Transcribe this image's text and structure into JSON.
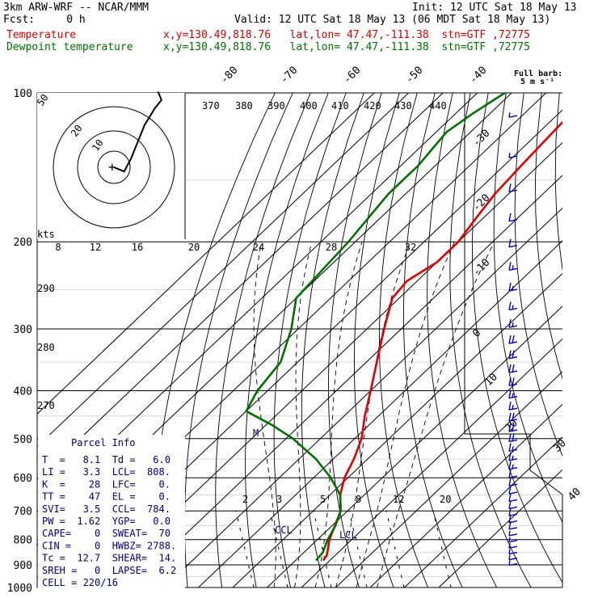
{
  "header": {
    "model": "3km ARW-WRF -- NCAR/MMM",
    "init": "Init: 12 UTC Sat 18 May 13",
    "fcst": "Fcst:     0 h",
    "valid": "Valid: 12 UTC Sat 18 May 13 (06 MDT Sat 18 May 13)",
    "temp_label": "Temperature",
    "temp_loc": "x,y=130.49,818.76   lat,lon= 47.47,-111.38  stn=GTF ,72775",
    "dew_label": "Dewpoint temperature",
    "dew_loc": "x,y=130.49,818.76   lat,lon= 47.47,-111.38  stn=GTF ,72775"
  },
  "barb_legend": {
    "title": "Full barb:",
    "value": "5 m s⁻¹"
  },
  "colors": {
    "temperature": "#e00000",
    "dewpoint": "#007000",
    "wind": "#0000c0",
    "parcel": "#000080"
  },
  "axes": {
    "pressure_labels": [
      "100",
      "200",
      "300",
      "400",
      "500",
      "600",
      "700",
      "800",
      "900",
      "1000"
    ],
    "pressure_values": [
      100,
      200,
      300,
      400,
      500,
      600,
      700,
      800,
      900,
      1000
    ],
    "skew_temps": [
      "-80",
      "-70",
      "-60",
      "-50",
      "-40",
      "-30",
      "-20",
      "-10",
      "0",
      "10",
      "20",
      "30",
      "40"
    ],
    "theta_labels": [
      "370",
      "380",
      "390",
      "400",
      "410",
      "420",
      "430",
      "440",
      "290",
      "280",
      "270"
    ],
    "hodo_speed_labels": [
      "8",
      "12",
      "16",
      "20",
      "24",
      "28",
      "32"
    ],
    "hodo_units": "kts",
    "hodo_ring_labels": [
      "50",
      "20",
      "10"
    ],
    "mixing_ratio_labels": [
      "2",
      "3",
      "5",
      "8",
      "12",
      "20"
    ]
  },
  "annotations": {
    "ccl": "CCL",
    "lcl": "LCL",
    "m": "M"
  },
  "parcel_info": {
    "title": "Parcel Info",
    "rows": [
      "T  =   8.1  Td =   6.0",
      "LI =   3.3  LCL=  808.",
      "K  =    28  LFC=    0.",
      "TT =    47  EL =    0.",
      "SVI=   3.5  CCL=  784.",
      "PW =  1.62  YGP=   0.0",
      "CAPE=    0  SWEAT=  70",
      "CIN =    0  HWBZ= 2788.",
      "Tc =  12.7  SHEAR=  14.",
      "SREH =   0  LAPSE=  6.2",
      "CELL = 220/16"
    ]
  },
  "chart_data": {
    "type": "line",
    "title": "",
    "ylabel": "",
    "ylim": [
      1000,
      100
    ],
    "y_scale": "log-pressure",
    "series": [
      {
        "name": "Temperature",
        "points": [
          [
            882,
            8.1
          ],
          [
            860,
            7.5
          ],
          [
            800,
            3.5
          ],
          [
            700,
            -2
          ],
          [
            650,
            -7
          ],
          [
            600,
            -11
          ],
          [
            550,
            -14
          ],
          [
            500,
            -18
          ],
          [
            450,
            -24
          ],
          [
            400,
            -30
          ],
          [
            350,
            -37
          ],
          [
            300,
            -45
          ],
          [
            260,
            -52
          ],
          [
            240,
            -53
          ],
          [
            220,
            -50
          ],
          [
            200,
            -50
          ],
          [
            180,
            -52
          ],
          [
            160,
            -54
          ],
          [
            140,
            -55
          ],
          [
            120,
            -56
          ],
          [
            100,
            -57
          ]
        ]
      },
      {
        "name": "Dewpoint temperature",
        "points": [
          [
            882,
            6.0
          ],
          [
            850,
            5.5
          ],
          [
            800,
            3
          ],
          [
            750,
            1
          ],
          [
            700,
            -2
          ],
          [
            650,
            -7
          ],
          [
            600,
            -15
          ],
          [
            550,
            -25
          ],
          [
            500,
            -38
          ],
          [
            470,
            -48
          ],
          [
            440,
            -60
          ],
          [
            400,
            -63
          ],
          [
            350,
            -65
          ],
          [
            300,
            -72
          ],
          [
            260,
            -80
          ],
          [
            200,
            -82
          ],
          [
            160,
            -85
          ],
          [
            140,
            -85
          ],
          [
            120,
            -87
          ],
          [
            110,
            -85
          ],
          [
            100,
            -82
          ]
        ]
      }
    ],
    "hodograph": [
      [
        0,
        0
      ],
      [
        3,
        -1
      ],
      [
        5,
        2
      ],
      [
        7,
        6
      ],
      [
        9,
        10
      ],
      [
        12,
        14
      ],
      [
        14,
        16
      ],
      [
        13,
        18
      ]
    ],
    "wind_speeds_ms": [
      5,
      5,
      10,
      10,
      10,
      15,
      15,
      15,
      15,
      20,
      20,
      20,
      20,
      15,
      15,
      20,
      20,
      20,
      15,
      15,
      15,
      10,
      10,
      10,
      10,
      10,
      10,
      10,
      10,
      5,
      5,
      5,
      5,
      5,
      5
    ]
  }
}
